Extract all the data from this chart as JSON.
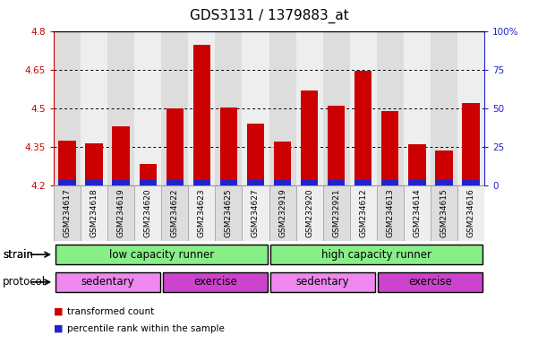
{
  "title": "GDS3131 / 1379883_at",
  "samples": [
    "GSM234617",
    "GSM234618",
    "GSM234619",
    "GSM234620",
    "GSM234622",
    "GSM234623",
    "GSM234625",
    "GSM234627",
    "GSM232919",
    "GSM232920",
    "GSM232921",
    "GSM234612",
    "GSM234613",
    "GSM234614",
    "GSM234615",
    "GSM234616"
  ],
  "red_values": [
    4.375,
    4.365,
    4.43,
    4.285,
    4.5,
    4.745,
    4.505,
    4.44,
    4.37,
    4.57,
    4.51,
    4.645,
    4.49,
    4.36,
    4.335,
    4.52
  ],
  "blue_values": [
    0.022,
    0.022,
    0.022,
    0.022,
    0.022,
    0.022,
    0.022,
    0.022,
    0.022,
    0.022,
    0.022,
    0.022,
    0.022,
    0.022,
    0.022,
    0.022
  ],
  "ymin": 4.2,
  "ymax": 4.8,
  "y_ticks_left": [
    4.2,
    4.35,
    4.5,
    4.65,
    4.8
  ],
  "y_ticks_right_vals": [
    0,
    25,
    50,
    75,
    100
  ],
  "y_ticks_right_labels": [
    "0",
    "25",
    "50",
    "75",
    "100%"
  ],
  "bar_color_red": "#cc0000",
  "bar_color_blue": "#2222cc",
  "bar_width": 0.65,
  "strain_labels": [
    "low capacity runner",
    "high capacity runner"
  ],
  "strain_color": "#88ee88",
  "protocol_labels": [
    "sedentary",
    "exercise",
    "sedentary",
    "exercise"
  ],
  "protocol_color_sedentary": "#ee88ee",
  "protocol_color_exercise": "#cc44cc",
  "col_bg_even": "#dddddd",
  "col_bg_odd": "#eeeeee",
  "legend_red_label": "transformed count",
  "legend_blue_label": "percentile rank within the sample",
  "tick_color_left": "#cc0000",
  "tick_color_right": "#2222cc",
  "title_fontsize": 11,
  "tick_fontsize": 7.5,
  "sample_fontsize": 6.5,
  "annotation_fontsize": 8.5
}
